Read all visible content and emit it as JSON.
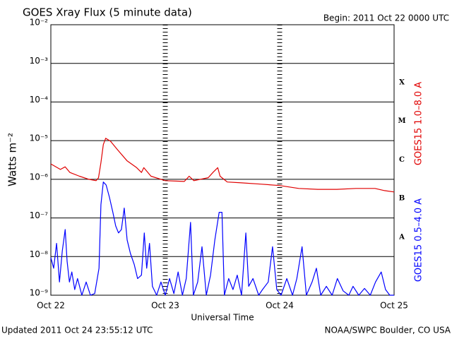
{
  "chart_data": {
    "type": "line",
    "title": "GOES Xray Flux (5 minute data)",
    "subtitle": "Begin:  2011 Oct 22 0000 UTC",
    "x_label": "Universal Time",
    "y_label": "Watts m⁻²",
    "footer_left": "Updated 2011 Oct 24 23:55:12 UTC",
    "footer_right": "NOAA/SWPC Boulder, CO USA",
    "log_y": true,
    "grid": true,
    "xlim": [
      0,
      72
    ],
    "xticks": [
      {
        "value": 0,
        "label": "Oct 22"
      },
      {
        "value": 24,
        "label": "Oct 23"
      },
      {
        "value": 48,
        "label": "Oct 24"
      },
      {
        "value": 72,
        "label": "Oct 25"
      }
    ],
    "ylim": [
      1e-09,
      0.01
    ],
    "yticks": [
      {
        "value": 1e-09,
        "label": "10⁻⁹"
      },
      {
        "value": 1e-08,
        "label": "10⁻⁸"
      },
      {
        "value": 1e-07,
        "label": "10⁻⁷"
      },
      {
        "value": 1e-06,
        "label": "10⁻⁶"
      },
      {
        "value": 1e-05,
        "label": "10⁻⁵"
      },
      {
        "value": 0.0001,
        "label": "10⁻⁴"
      },
      {
        "value": 0.001,
        "label": "10⁻³"
      },
      {
        "value": 0.01,
        "label": "10⁻²"
      }
    ],
    "flare_classes": [
      "X",
      "M",
      "C",
      "B",
      "A"
    ],
    "series": [
      {
        "name": "GOES15 1.0–8.0 A",
        "color": "#e00000",
        "x": [
          0,
          2,
          3,
          4,
          6,
          8,
          9.5,
          10,
          10.5,
          11,
          11.5,
          12.5,
          14,
          16,
          18,
          19,
          19.5,
          21,
          24,
          28,
          29,
          30,
          33,
          34,
          35,
          35.5,
          37,
          40,
          44,
          48,
          52,
          56,
          60,
          64,
          68,
          70,
          72
        ],
        "values": [
          2.5e-06,
          1.8e-06,
          2.1e-06,
          1.5e-06,
          1.2e-06,
          1e-06,
          9.2e-07,
          1.1e-06,
          2.7e-06,
          7.9e-06,
          1.15e-05,
          9.7e-06,
          5.8e-06,
          3e-06,
          2e-06,
          1.5e-06,
          2e-06,
          1.2e-06,
          9.2e-07,
          8.8e-07,
          1.2e-06,
          9.2e-07,
          1.1e-06,
          1.5e-06,
          2e-06,
          1.2e-06,
          8.5e-07,
          8.1e-07,
          7.5e-07,
          6.9e-07,
          5.8e-07,
          5.5e-07,
          5.5e-07,
          5.8e-07,
          5.8e-07,
          5.1e-07,
          4.7e-07
        ]
      },
      {
        "name": "GOES15 0.5–4.0 A",
        "color": "#0000ff",
        "x": [
          0,
          0.6,
          1.2,
          1.8,
          2.4,
          3.0,
          3.4,
          3.9,
          4.4,
          5.0,
          5.6,
          6.5,
          7.4,
          8.3,
          9.2,
          10.1,
          10.5,
          11.0,
          11.6,
          12.3,
          13.0,
          13.6,
          14.2,
          14.8,
          15.4,
          16.0,
          16.7,
          17.5,
          18.2,
          19.0,
          19.6,
          20.1,
          20.7,
          21.3,
          22.2,
          23.1,
          24.0,
          24.9,
          25.8,
          26.7,
          27.6,
          28.4,
          29.3,
          29.9,
          30.8,
          31.7,
          32.6,
          33.5,
          34.4,
          35.3,
          35.9,
          36.4,
          37.3,
          38.2,
          39.1,
          40.0,
          40.9,
          41.5,
          42.4,
          43.6,
          44.4,
          45.6,
          46.5,
          47.4,
          48.3,
          49.5,
          50.7,
          51.6,
          52.7,
          53.6,
          54.8,
          55.7,
          56.6,
          57.8,
          59.0,
          60.1,
          61.3,
          62.5,
          63.4,
          64.6,
          65.8,
          67.0,
          68.1,
          69.3,
          70.2,
          71.1,
          72
        ],
        "values": [
          9.4e-09,
          5e-09,
          2.2e-08,
          2.2e-09,
          1.4e-08,
          5e-08,
          7.6e-09,
          2.2e-09,
          4e-09,
          1.4e-09,
          2.7e-09,
          1e-09,
          2.2e-09,
          1e-09,
          1.1e-09,
          5e-09,
          2.2e-07,
          8.5e-07,
          7.1e-07,
          3.4e-07,
          1.4e-07,
          6.2e-08,
          4.1e-08,
          5e-08,
          1.8e-07,
          2.7e-08,
          1.2e-08,
          6.2e-09,
          2.7e-09,
          3.3e-09,
          4.1e-08,
          5e-09,
          2.2e-08,
          1.7e-09,
          1e-09,
          2.2e-09,
          1e-09,
          2.7e-09,
          1.1e-09,
          4e-09,
          1e-09,
          2.7e-09,
          7.7e-08,
          1e-09,
          2.2e-09,
          1.8e-08,
          1e-09,
          3.3e-09,
          2.7e-08,
          1.4e-07,
          1.4e-07,
          1e-09,
          2.7e-09,
          1.4e-09,
          3.3e-09,
          1e-09,
          4.1e-08,
          1.7e-09,
          2.7e-09,
          1e-09,
          1.4e-09,
          2.2e-09,
          1.8e-08,
          1.4e-09,
          1e-09,
          2.7e-09,
          1e-09,
          2.7e-09,
          1.8e-08,
          1e-09,
          2.2e-09,
          5e-09,
          1e-09,
          1.7e-09,
          1e-09,
          2.7e-09,
          1.3e-09,
          1e-09,
          1.7e-09,
          1e-09,
          1.5e-09,
          1e-09,
          2.2e-09,
          4e-09,
          1.4e-09,
          1e-09,
          1e-09
        ]
      }
    ]
  }
}
